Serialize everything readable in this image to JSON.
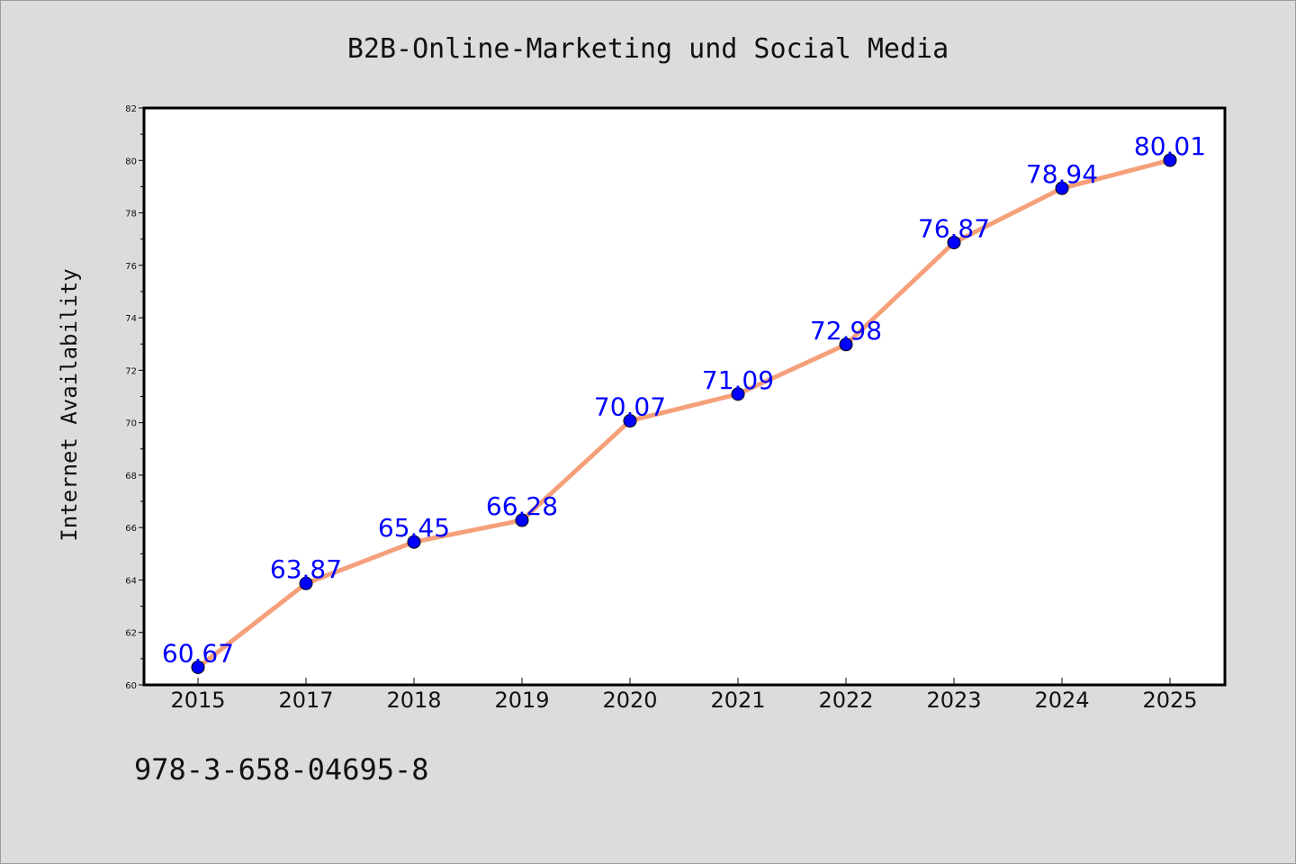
{
  "chart_data": {
    "type": "line",
    "title": "B2B-Online-Marketing und Social Media",
    "xlabel": "",
    "ylabel": "Internet Availability",
    "categories": [
      "2015",
      "2017",
      "2018",
      "2019",
      "2020",
      "2021",
      "2022",
      "2023",
      "2024",
      "2025"
    ],
    "series": [
      {
        "values": [
          60.67,
          63.87,
          65.45,
          66.28,
          70.07,
          71.09,
          72.98,
          76.87,
          78.94,
          80.01
        ],
        "labels": [
          "60.67",
          "63.87",
          "65.45",
          "66.28",
          "70.07",
          "71.09",
          "72.98",
          "76.87",
          "78.94",
          "80.01"
        ]
      }
    ],
    "ylim": [
      60,
      82
    ],
    "yticks": [
      60,
      62,
      64,
      66,
      68,
      70,
      72,
      74,
      76,
      78,
      80,
      82
    ],
    "ytick_labels": [
      "60",
      "62",
      "64",
      "66",
      "68",
      "70",
      "72",
      "74",
      "76",
      "78",
      "80",
      "82"
    ],
    "grid": false,
    "colors": {
      "line": "#f5a07a",
      "marker": "#0000ff",
      "data_label": "#0000ff",
      "background": "#dcdcdc",
      "plot_background": "#ffffff"
    }
  },
  "footer": {
    "text": "978-3-658-04695-8"
  }
}
